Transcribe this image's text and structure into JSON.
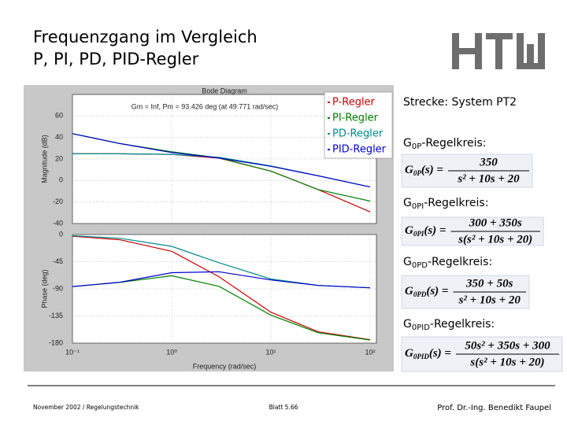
{
  "header": {
    "title": [
      "Frequenzgang im Vergleich",
      "P, PI, PD, PID-Regler"
    ]
  },
  "chart_data": [
    {
      "type": "line",
      "title": "Bode Diagram",
      "subtitle": "Gm = Inf, Pm = 93.426 deg (at 49.771 rad/sec)",
      "ylabel": "Magnitude (dB)",
      "log_x": true,
      "grid": true,
      "legend": "upper right",
      "x": [
        0.1,
        0.3,
        1,
        3,
        10,
        30,
        100
      ],
      "xlim": [
        0.1,
        100
      ],
      "ylim": [
        -40,
        80
      ],
      "yticks": [
        -40,
        -20,
        0,
        20,
        40,
        60
      ],
      "series": [
        {
          "name": "P-Regler",
          "color": "#cc0000",
          "values": [
            24.85,
            24.8,
            24.24,
            20.79,
            8.73,
            -8.49,
            -29.15
          ]
        },
        {
          "name": "PI-Regler",
          "color": "#008000",
          "values": [
            43.57,
            34.42,
            26.63,
            21.13,
            8.76,
            -8.48,
            -19.15
          ]
        },
        {
          "name": "PD-Regler",
          "color": "#008b8b",
          "values": [
            24.85,
            24.81,
            24.33,
            21.55,
            13.56,
            4.44,
            -6.03
          ]
        },
        {
          "name": "PID-Regler",
          "color": "#0000cc",
          "values": [
            43.56,
            34.31,
            26.03,
            20.88,
            13.21,
            4.33,
            -6.03
          ]
        }
      ]
    },
    {
      "type": "line",
      "xlabel": "Frequency (rad/sec)",
      "ylabel": "Phase (deg)",
      "log_x": true,
      "grid": true,
      "x": [
        0.1,
        0.3,
        1,
        3,
        10,
        30,
        100
      ],
      "xlim": [
        0.1,
        100
      ],
      "xticks": [
        {
          "value": 0.1,
          "label": "10⁻¹"
        },
        {
          "value": 1,
          "label": "10⁰"
        },
        {
          "value": 10,
          "label": "10¹"
        },
        {
          "value": 100,
          "label": "10²"
        }
      ],
      "ylim": [
        -180,
        0
      ],
      "yticks": [
        -180,
        -135,
        -90,
        -45,
        0
      ],
      "series": [
        {
          "color": "#cc0000",
          "values": [
            -2.9,
            -8.6,
            -27.8,
            -69.9,
            -128.7,
            -161.2,
            -174.3
          ]
        },
        {
          "color": "#008000",
          "values": [
            -86.2,
            -79.3,
            -68.4,
            -85.8,
            -133.6,
            -162.8,
            -174.8
          ]
        },
        {
          "color": "#008b8b",
          "values": [
            -2,
            -6.1,
            -19.6,
            -46.7,
            -73.7,
            -84.3,
            -88.3
          ]
        },
        {
          "color": "#0000cc",
          "values": [
            -86.2,
            -79,
            -63.3,
            -61.7,
            -75.3,
            -84.4,
            -88.3
          ]
        }
      ]
    }
  ],
  "sidebar": {
    "plant": "Strecke: System PT2",
    "loops": [
      {
        "symbol": "G",
        "sub": "0P",
        "text": "-Regelkreis:",
        "lhs": "G",
        "lhs_sub": "0P",
        "lhs_rest": "(s) =",
        "num": "350",
        "den": "s² + 10s + 20"
      },
      {
        "symbol": "G",
        "sub": "0PI",
        "text": "-Regelkreis:",
        "lhs": "G",
        "lhs_sub": "0PI",
        "lhs_rest": "(s) =",
        "num": "300 + 350s",
        "den": "s(s² + 10s + 20)"
      },
      {
        "symbol": "G",
        "sub": "0PD",
        "text": "-Regelkreis:",
        "lhs": "G",
        "lhs_sub": "0PD",
        "lhs_rest": "(s) =",
        "num": "350 + 50s",
        "den": "s² + 10s + 20"
      },
      {
        "symbol": "G",
        "sub": "0PID",
        "text": "-Regelkreis:",
        "lhs": "G",
        "lhs_sub": "0PID",
        "lhs_rest": "(s) =",
        "num": "50s² + 350s + 300",
        "den": "s(s² + 10s + 20)"
      }
    ]
  },
  "footer": {
    "left": "November 2002 / Regelungstechnik",
    "center": "Blatt 5.66",
    "right": "Prof. Dr.-Ing. Benedikt Faupel"
  }
}
